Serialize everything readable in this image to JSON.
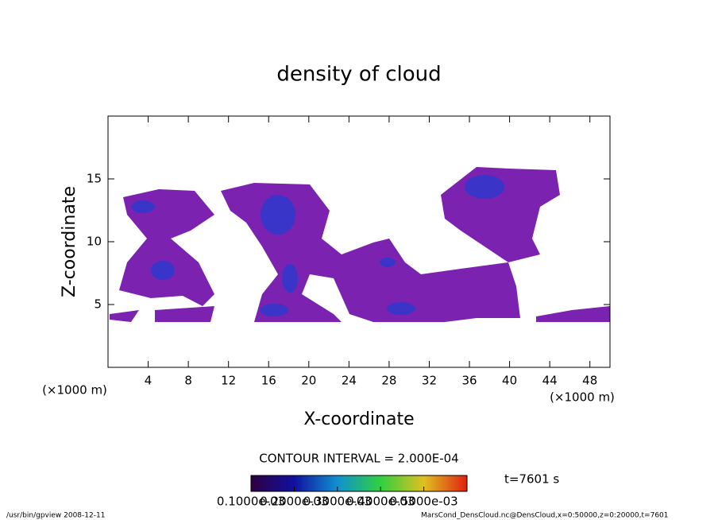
{
  "chart_data": {
    "type": "contour",
    "title": "density of cloud",
    "x_label": "X-coordinate",
    "y_label": "Z-coordinate",
    "x_unit_left": "(×1000 m)",
    "x_unit_right": "(×1000 m)",
    "xlim": [
      0,
      50
    ],
    "xticks": [
      4,
      8,
      12,
      16,
      20,
      24,
      28,
      32,
      36,
      40,
      44,
      48
    ],
    "ylim": [
      0,
      20
    ],
    "yticks": [
      5,
      10,
      15
    ],
    "contour_interval": "CONTOUR INTERVAL = 2.000E-04",
    "time_label": "t=7601 s",
    "colorbar": {
      "lim": [
        0.0001,
        0.0006
      ],
      "ticks": [
        {
          "value": 0.0001,
          "label": "0.1000e-03"
        },
        {
          "value": 0.0002,
          "label": "0.2000e-03"
        },
        {
          "value": 0.0003,
          "label": "0.3000e-03"
        },
        {
          "value": 0.0004,
          "label": "0.4000e-03"
        },
        {
          "value": 0.0005,
          "label": "0.5000e-03"
        }
      ]
    },
    "footer_left": "/usr/bin/gpview  2008-12-11",
    "footer_right": "MarsCond_DensCloud.nc@DensCloud,x=0:50000,z=0:20000,t=7601"
  }
}
